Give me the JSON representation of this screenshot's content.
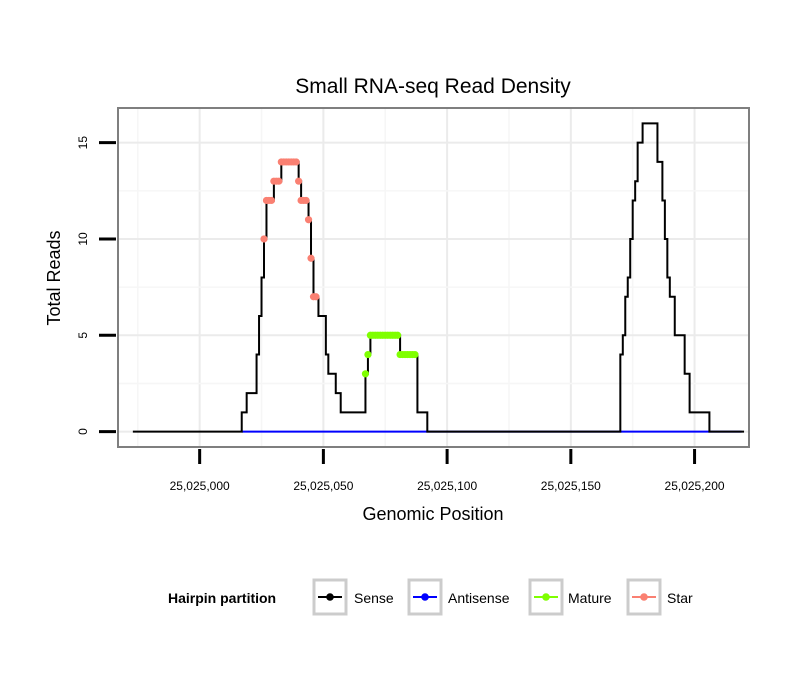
{
  "chart_data": {
    "type": "line",
    "title": "Small RNA-seq Read Density",
    "xlabel": "Genomic Position",
    "ylabel": "Total Reads",
    "xlim": [
      25024967,
      25025222
    ],
    "ylim": [
      -0.8,
      16.8
    ],
    "x_ticks": [
      25025000,
      25025050,
      25025100,
      25025150,
      25025200
    ],
    "x_tick_labels": [
      "25,025,000",
      "25,025,050",
      "25,025,100",
      "25,025,150",
      "25,025,200"
    ],
    "y_ticks": [
      0,
      5,
      10,
      15
    ],
    "y_tick_labels": [
      "0",
      "5",
      "10",
      "15"
    ],
    "grid": true,
    "legend_position": "bottom",
    "legend": {
      "title": "Hairpin partition",
      "entries": [
        {
          "name": "Sense",
          "color": "#000000"
        },
        {
          "name": "Antisense",
          "color": "#0000ff"
        },
        {
          "name": "Mature",
          "color": "#7fff00"
        },
        {
          "name": "Star",
          "color": "#fa8072"
        }
      ]
    },
    "series": [
      {
        "name": "Sense",
        "color": "#000000",
        "style": "step-line",
        "points": [
          [
            25024973,
            0
          ],
          [
            25025017,
            0
          ],
          [
            25025017,
            1
          ],
          [
            25025019,
            1
          ],
          [
            25025019,
            2
          ],
          [
            25025023,
            2
          ],
          [
            25025023,
            4
          ],
          [
            25025024,
            4
          ],
          [
            25025024,
            6
          ],
          [
            25025025,
            6
          ],
          [
            25025025,
            8
          ],
          [
            25025026,
            8
          ],
          [
            25025026,
            10
          ],
          [
            25025027,
            10
          ],
          [
            25025027,
            12
          ],
          [
            25025030,
            12
          ],
          [
            25025030,
            13
          ],
          [
            25025033,
            13
          ],
          [
            25025033,
            14
          ],
          [
            25025040,
            14
          ],
          [
            25025040,
            13
          ],
          [
            25025041,
            13
          ],
          [
            25025041,
            12
          ],
          [
            25025044,
            12
          ],
          [
            25025044,
            11
          ],
          [
            25025045,
            11
          ],
          [
            25025045,
            9
          ],
          [
            25025046,
            9
          ],
          [
            25025046,
            7
          ],
          [
            25025048,
            7
          ],
          [
            25025048,
            6
          ],
          [
            25025051,
            6
          ],
          [
            25025051,
            4
          ],
          [
            25025052,
            4
          ],
          [
            25025052,
            3
          ],
          [
            25025055,
            3
          ],
          [
            25025055,
            2
          ],
          [
            25025057,
            2
          ],
          [
            25025057,
            1
          ],
          [
            25025067,
            1
          ],
          [
            25025067,
            3
          ],
          [
            25025068,
            3
          ],
          [
            25025068,
            4
          ],
          [
            25025069,
            4
          ],
          [
            25025069,
            5
          ],
          [
            25025081,
            5
          ],
          [
            25025081,
            4
          ],
          [
            25025088,
            4
          ],
          [
            25025088,
            1
          ],
          [
            25025092,
            1
          ],
          [
            25025092,
            0
          ],
          [
            25025170,
            0
          ],
          [
            25025170,
            4
          ],
          [
            25025171,
            4
          ],
          [
            25025171,
            5
          ],
          [
            25025172,
            5
          ],
          [
            25025172,
            7
          ],
          [
            25025173,
            7
          ],
          [
            25025173,
            8
          ],
          [
            25025174,
            8
          ],
          [
            25025174,
            10
          ],
          [
            25025175,
            10
          ],
          [
            25025175,
            12
          ],
          [
            25025176,
            12
          ],
          [
            25025176,
            13
          ],
          [
            25025177,
            13
          ],
          [
            25025177,
            15
          ],
          [
            25025179,
            15
          ],
          [
            25025179,
            16
          ],
          [
            25025185,
            16
          ],
          [
            25025185,
            14
          ],
          [
            25025187,
            14
          ],
          [
            25025187,
            12
          ],
          [
            25025188,
            12
          ],
          [
            25025188,
            10
          ],
          [
            25025189,
            10
          ],
          [
            25025189,
            8
          ],
          [
            25025190,
            8
          ],
          [
            25025190,
            7
          ],
          [
            25025192,
            7
          ],
          [
            25025192,
            5
          ],
          [
            25025196,
            5
          ],
          [
            25025196,
            3
          ],
          [
            25025198,
            3
          ],
          [
            25025198,
            1
          ],
          [
            25025206,
            1
          ],
          [
            25025206,
            0
          ],
          [
            25025220,
            0
          ]
        ]
      },
      {
        "name": "Antisense",
        "color": "#0000ff",
        "style": "line",
        "points": [
          [
            25025017,
            0
          ],
          [
            25025219,
            0
          ]
        ]
      },
      {
        "name": "Mature",
        "color": "#7fff00",
        "style": "points",
        "points": [
          [
            25025067,
            3
          ],
          [
            25025068,
            4
          ],
          [
            25025069,
            5
          ],
          [
            25025070,
            5
          ],
          [
            25025071,
            5
          ],
          [
            25025072,
            5
          ],
          [
            25025073,
            5
          ],
          [
            25025074,
            5
          ],
          [
            25025075,
            5
          ],
          [
            25025076,
            5
          ],
          [
            25025077,
            5
          ],
          [
            25025078,
            5
          ],
          [
            25025079,
            5
          ],
          [
            25025080,
            5
          ],
          [
            25025081,
            4
          ],
          [
            25025082,
            4
          ],
          [
            25025083,
            4
          ],
          [
            25025084,
            4
          ],
          [
            25025085,
            4
          ],
          [
            25025086,
            4
          ],
          [
            25025087,
            4
          ]
        ]
      },
      {
        "name": "Star",
        "color": "#fa8072",
        "style": "points",
        "points": [
          [
            25025026,
            10
          ],
          [
            25025027,
            12
          ],
          [
            25025028,
            12
          ],
          [
            25025029,
            12
          ],
          [
            25025030,
            13
          ],
          [
            25025031,
            13
          ],
          [
            25025032,
            13
          ],
          [
            25025033,
            14
          ],
          [
            25025034,
            14
          ],
          [
            25025035,
            14
          ],
          [
            25025036,
            14
          ],
          [
            25025037,
            14
          ],
          [
            25025038,
            14
          ],
          [
            25025039,
            14
          ],
          [
            25025040,
            13
          ],
          [
            25025041,
            12
          ],
          [
            25025042,
            12
          ],
          [
            25025043,
            12
          ],
          [
            25025044,
            11
          ],
          [
            25025045,
            9
          ],
          [
            25025046,
            7
          ],
          [
            25025047,
            7
          ]
        ]
      }
    ]
  }
}
